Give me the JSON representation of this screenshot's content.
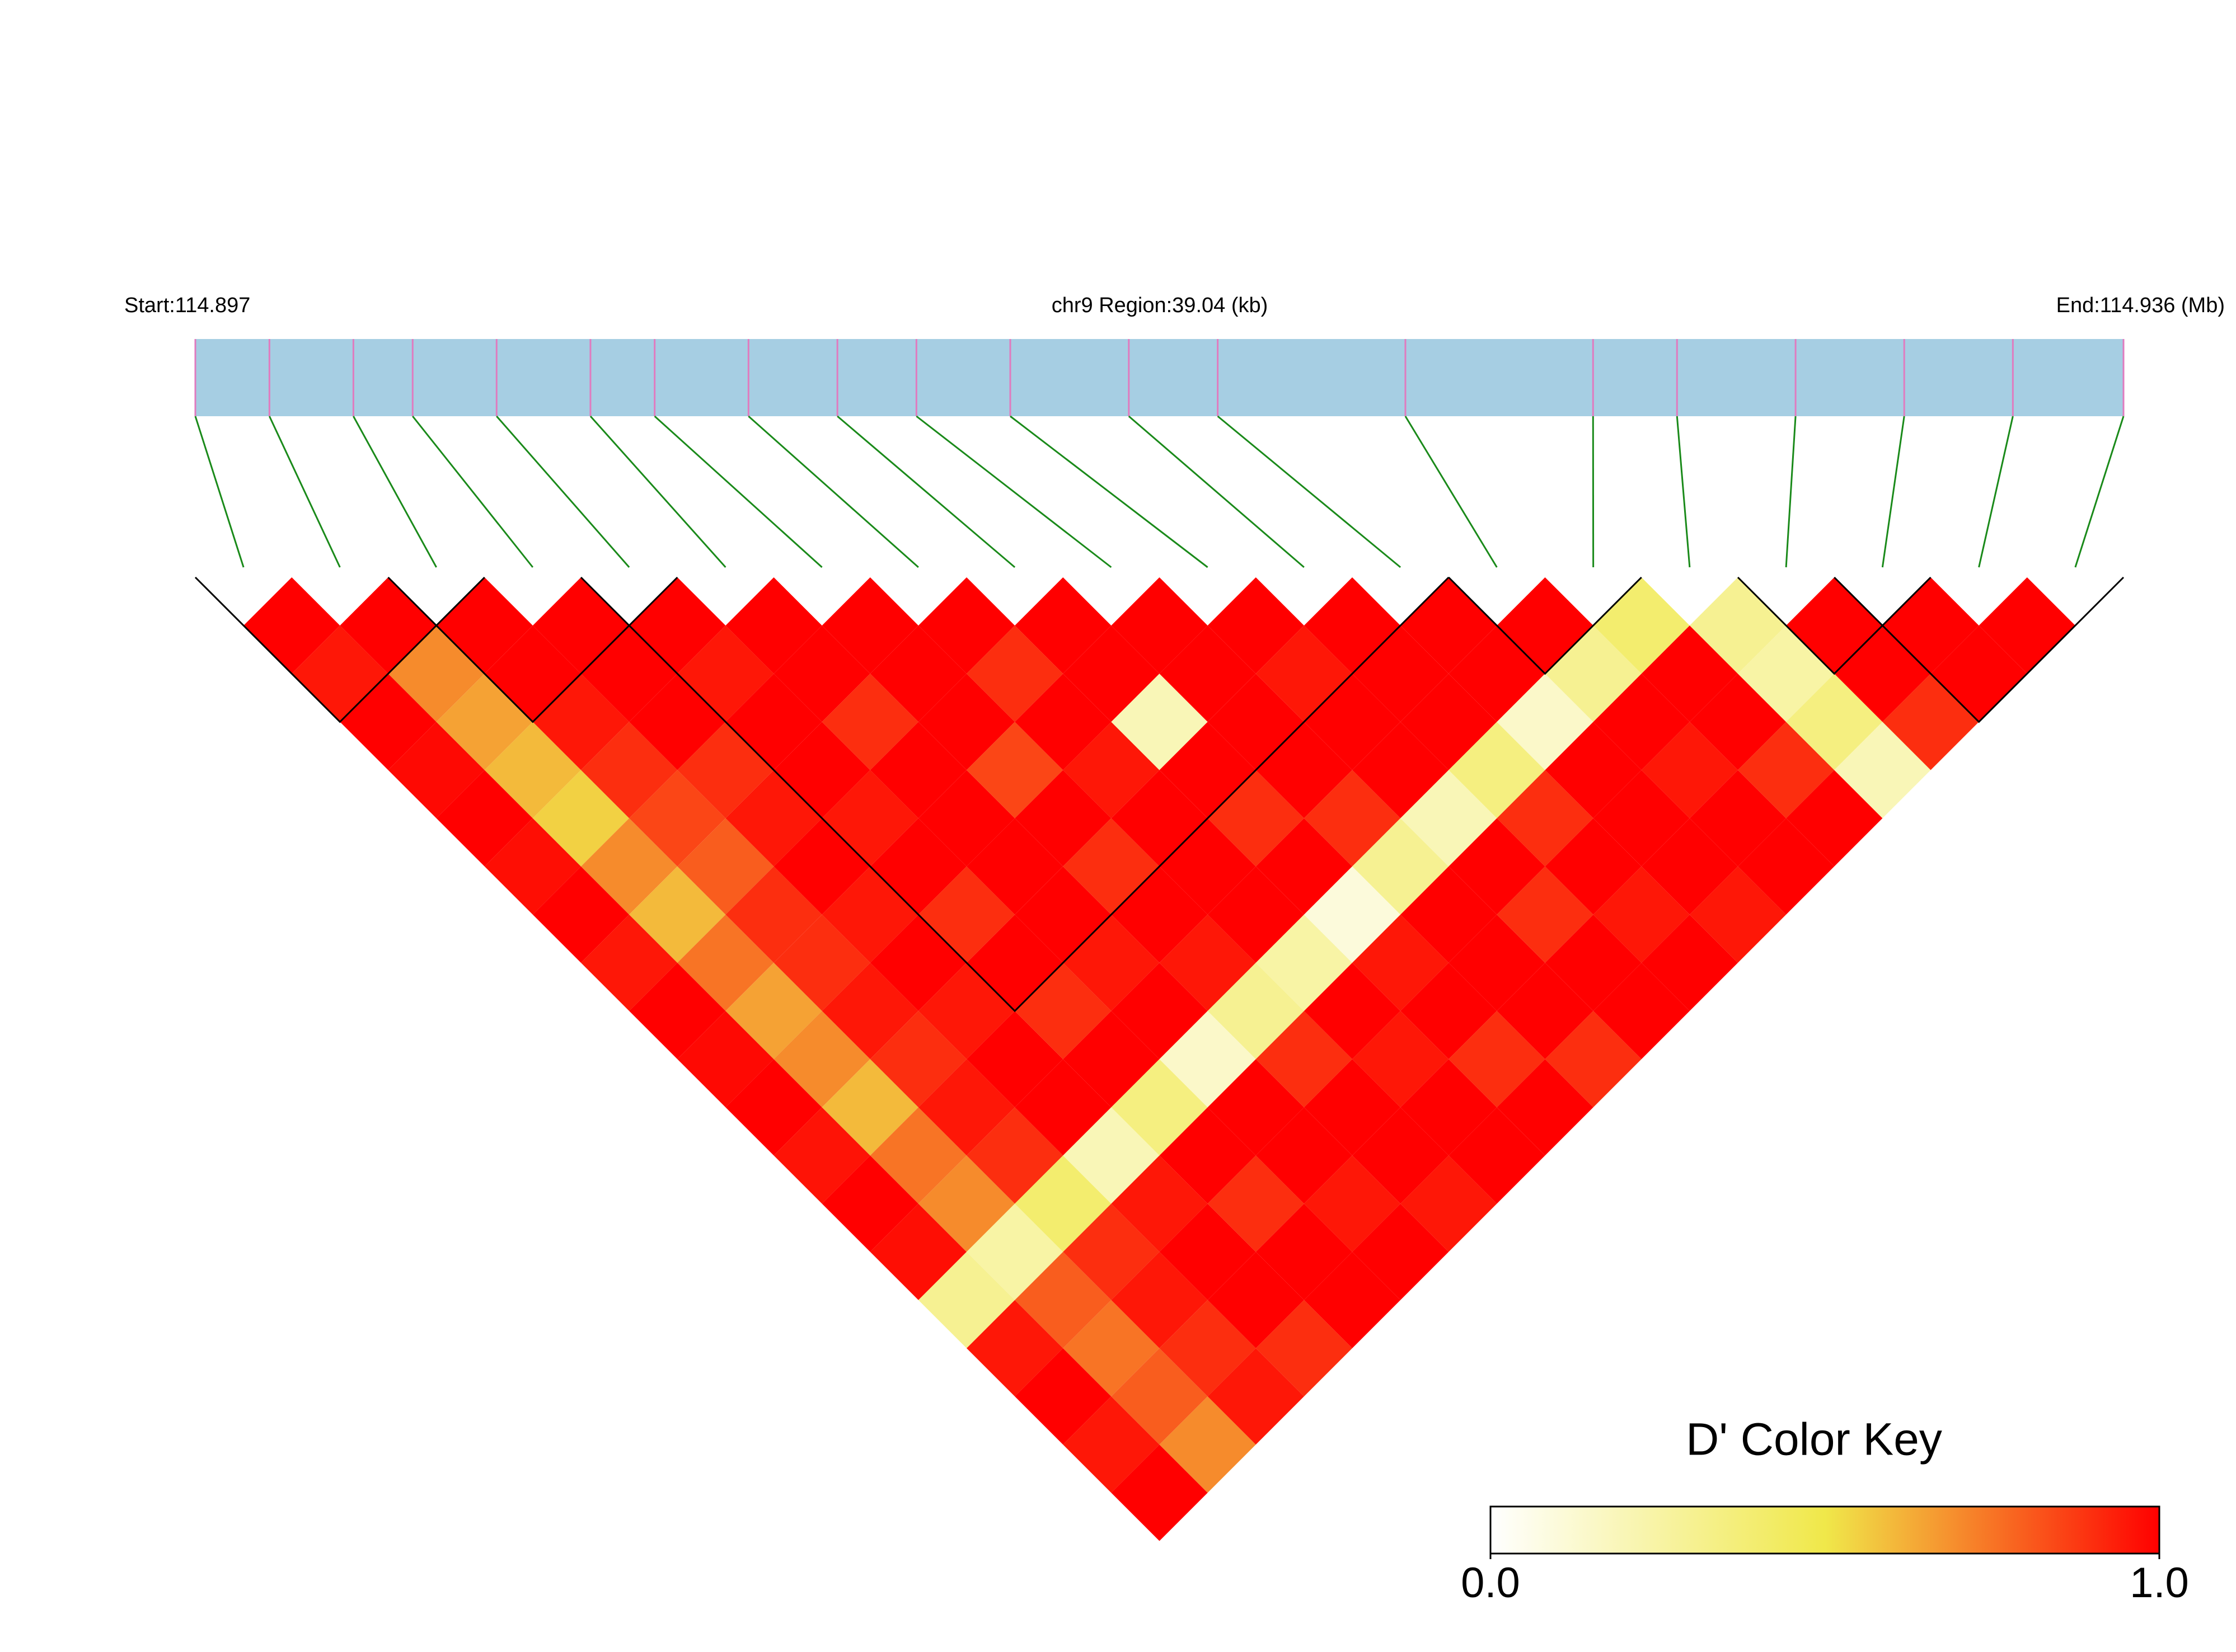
{
  "chart_data": {
    "type": "ld_heatmap",
    "start_label": "Start:114.897",
    "region_label": "chr9 Region:39.04 (kb)",
    "end_label": "End:114.936 (Mb)",
    "key_title": "D' Color Key",
    "xlim": [
      0,
      39.04
    ],
    "snp_positions": [
      0,
      1.5,
      3.2,
      4.4,
      6.1,
      8.0,
      9.3,
      11.2,
      13.0,
      14.6,
      16.5,
      18.9,
      20.7,
      24.5,
      28.3,
      30.0,
      32.4,
      34.6,
      36.8,
      39.04
    ],
    "dprime": [
      [
        1.0
      ],
      [
        0.95,
        1.0
      ],
      [
        1.0,
        0.7,
        1.0
      ],
      [
        0.98,
        0.65,
        1.0,
        1.0
      ],
      [
        1.0,
        0.6,
        0.95,
        1.0,
        1.0
      ],
      [
        0.97,
        0.55,
        0.9,
        1.0,
        0.95,
        1.0
      ],
      [
        1.0,
        0.7,
        0.85,
        0.9,
        1.0,
        1.0,
        1.0
      ],
      [
        0.95,
        0.6,
        0.8,
        0.95,
        1.0,
        0.9,
        1.0,
        1.0
      ],
      [
        1.0,
        0.75,
        0.9,
        1.0,
        0.95,
        1.0,
        1.0,
        0.9,
        1.0
      ],
      [
        0.98,
        0.65,
        0.9,
        0.95,
        1.0,
        1.0,
        0.85,
        1.0,
        1.0,
        1.0
      ],
      [
        1.0,
        0.7,
        0.95,
        1.0,
        0.9,
        1.0,
        1.0,
        0.95,
        0.2,
        1.0,
        1.0
      ],
      [
        0.96,
        0.6,
        0.9,
        0.95,
        1.0,
        1.0,
        0.9,
        1.0,
        1.0,
        1.0,
        0.95,
        1.0
      ],
      [
        1.0,
        0.75,
        0.95,
        1.0,
        0.9,
        0.95,
        1.0,
        1.0,
        0.9,
        1.0,
        1.0,
        1.0,
        1.0
      ],
      [
        0.97,
        0.7,
        0.9,
        1.0,
        1.0,
        1.0,
        0.95,
        1.0,
        1.0,
        0.9,
        1.0,
        1.0,
        1.0,
        1.0
      ],
      [
        0.3,
        0.25,
        0.4,
        0.2,
        0.35,
        0.15,
        0.3,
        0.25,
        0.1,
        0.3,
        0.2,
        0.35,
        0.15,
        0.3,
        0.4
      ],
      [
        0.95,
        0.8,
        0.9,
        0.95,
        1.0,
        1.0,
        0.9,
        1.0,
        0.95,
        1.0,
        1.0,
        0.9,
        1.0,
        1.0,
        1.0,
        0.3
      ],
      [
        1.0,
        0.75,
        0.95,
        1.0,
        0.9,
        1.0,
        1.0,
        0.95,
        1.0,
        1.0,
        0.9,
        1.0,
        1.0,
        0.95,
        1.0,
        0.25,
        1.0
      ],
      [
        0.95,
        0.8,
        0.9,
        1.0,
        1.0,
        0.95,
        1.0,
        1.0,
        0.9,
        1.0,
        1.0,
        0.95,
        1.0,
        1.0,
        0.9,
        0.35,
        1.0,
        1.0
      ],
      [
        1.0,
        0.7,
        0.95,
        0.9,
        1.0,
        1.0,
        0.95,
        1.0,
        1.0,
        0.9,
        1.0,
        1.0,
        0.95,
        1.0,
        1.0,
        0.2,
        0.9,
        1.0,
        1.0
      ]
    ],
    "blocks": [
      [
        0,
        2
      ],
      [
        2,
        4
      ],
      [
        4,
        12
      ],
      [
        13,
        14
      ],
      [
        16,
        17
      ],
      [
        17,
        19
      ]
    ],
    "color_scale": [
      "#ffffff",
      "#f0e84a",
      "#ff0000"
    ],
    "track_color": "#a6cee3",
    "tick_color": "#e07bbf",
    "connector_color": "#1a8a1a",
    "clim": [
      0,
      1
    ],
    "cticks": [
      {
        "value": 0,
        "label": "0.0"
      },
      {
        "value": 1,
        "label": "1.0"
      }
    ]
  }
}
